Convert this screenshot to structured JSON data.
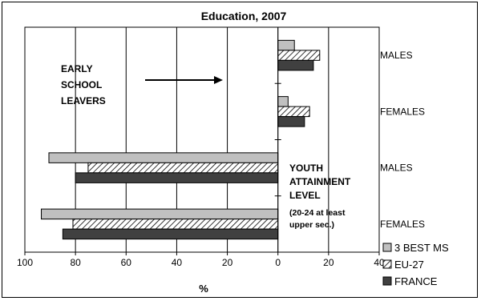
{
  "chart_data": {
    "type": "bar",
    "orientation": "horizontal",
    "title": "Education, 2007",
    "xlabel": "%",
    "ylabel": "",
    "x_ticks": [
      "100",
      "80",
      "60",
      "40",
      "20",
      "0",
      "20",
      "40"
    ],
    "xlim": [
      -100,
      40
    ],
    "grid": "vertical",
    "legend_position": "bottom-right",
    "groups": [
      {
        "label": "MALES",
        "values": [
          6.5,
          16.5,
          14
        ]
      },
      {
        "label": "FEMALES",
        "values": [
          4,
          12.5,
          10.5
        ]
      },
      {
        "label": "MALES",
        "values": [
          -90.5,
          -75,
          -80
        ]
      },
      {
        "label": "FEMALES",
        "values": [
          -93.5,
          -81,
          -85
        ]
      }
    ],
    "series": [
      {
        "name": "3 BEST MS",
        "color": "#c0c0c0",
        "pattern": "solid"
      },
      {
        "name": "EU-27",
        "color": "#ffffff",
        "pattern": "diagonal-hatch"
      },
      {
        "name": "FRANCE",
        "color": "#404040",
        "pattern": "solid"
      }
    ],
    "annotations": {
      "early_school_leavers": [
        "EARLY",
        "SCHOOL",
        "LEAVERS"
      ],
      "youth_attainment": [
        "YOUTH",
        "ATTAINMENT",
        "LEVEL"
      ],
      "youth_attainment_note": [
        "(20-24 at least",
        "upper sec.)"
      ]
    }
  }
}
